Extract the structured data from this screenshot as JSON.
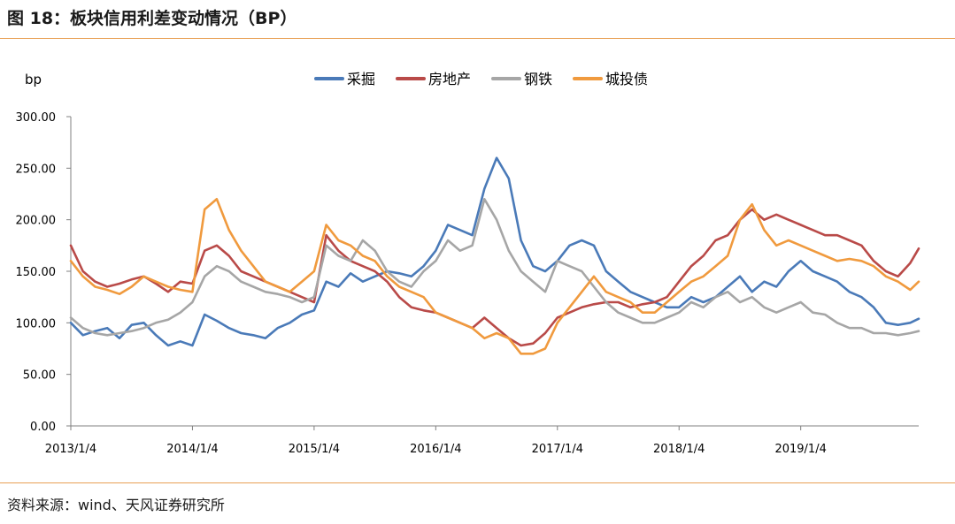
{
  "figure_title": "图 18：板块信用利差变动情况（BP）",
  "source": "资料来源：wind、天风证券研究所",
  "colors": {
    "rule": "#e8a055"
  },
  "chart_data": {
    "type": "line",
    "title": "",
    "unit_label": "bp",
    "xlabel": "",
    "ylabel": "bp",
    "ylim": [
      0,
      300
    ],
    "y_ticks": [
      "0.00",
      "50.00",
      "100.00",
      "150.00",
      "200.00",
      "250.00",
      "300.00"
    ],
    "x_tick_labels": [
      "2013/1/4",
      "2014/1/4",
      "2015/1/4",
      "2016/1/4",
      "2017/1/4",
      "2018/1/4",
      "2019/1/4"
    ],
    "x_tick_years": [
      2013,
      2014,
      2015,
      2016,
      2017,
      2018,
      2019
    ],
    "xlim": [
      2013.0,
      2019.97
    ],
    "grid": false,
    "legend_position": "top-center",
    "x": [
      2013.0,
      2013.1,
      2013.2,
      2013.3,
      2013.4,
      2013.5,
      2013.6,
      2013.7,
      2013.8,
      2013.9,
      2014.0,
      2014.1,
      2014.2,
      2014.3,
      2014.4,
      2014.5,
      2014.6,
      2014.7,
      2014.8,
      2014.9,
      2015.0,
      2015.1,
      2015.2,
      2015.3,
      2015.4,
      2015.5,
      2015.6,
      2015.7,
      2015.8,
      2015.9,
      2016.0,
      2016.1,
      2016.2,
      2016.3,
      2016.4,
      2016.5,
      2016.6,
      2016.7,
      2016.8,
      2016.9,
      2017.0,
      2017.1,
      2017.2,
      2017.3,
      2017.4,
      2017.5,
      2017.6,
      2017.7,
      2017.8,
      2017.9,
      2018.0,
      2018.1,
      2018.2,
      2018.3,
      2018.4,
      2018.5,
      2018.6,
      2018.7,
      2018.8,
      2018.9,
      2019.0,
      2019.1,
      2019.2,
      2019.3,
      2019.4,
      2019.5,
      2019.6,
      2019.7,
      2019.8,
      2019.9,
      2019.97
    ],
    "series": [
      {
        "name": "采掘",
        "color": "#4a7ab8",
        "values": [
          100,
          88,
          92,
          95,
          85,
          98,
          100,
          88,
          78,
          82,
          78,
          108,
          102,
          95,
          90,
          88,
          85,
          95,
          100,
          108,
          112,
          140,
          135,
          148,
          140,
          145,
          150,
          148,
          145,
          155,
          170,
          195,
          190,
          185,
          230,
          260,
          240,
          180,
          155,
          150,
          160,
          175,
          180,
          175,
          150,
          140,
          130,
          125,
          120,
          115,
          115,
          125,
          120,
          125,
          135,
          145,
          130,
          140,
          135,
          150,
          160,
          150,
          145,
          140,
          130,
          125,
          115,
          100,
          98,
          100,
          104
        ]
      },
      {
        "name": "房地产",
        "color": "#b94a48",
        "values": [
          175,
          150,
          140,
          135,
          138,
          142,
          145,
          138,
          130,
          140,
          138,
          170,
          175,
          165,
          150,
          145,
          140,
          135,
          130,
          125,
          120,
          185,
          170,
          160,
          155,
          150,
          140,
          125,
          115,
          112,
          110,
          105,
          100,
          95,
          105,
          95,
          85,
          78,
          80,
          90,
          105,
          110,
          115,
          118,
          120,
          120,
          115,
          118,
          120,
          125,
          140,
          155,
          165,
          180,
          185,
          200,
          210,
          200,
          205,
          200,
          195,
          190,
          185,
          185,
          180,
          175,
          160,
          150,
          145,
          158,
          172
        ]
      },
      {
        "name": "钢铁",
        "color": "#a6a6a6",
        "values": [
          105,
          95,
          90,
          88,
          90,
          92,
          95,
          100,
          103,
          110,
          120,
          145,
          155,
          150,
          140,
          135,
          130,
          128,
          125,
          120,
          125,
          175,
          165,
          160,
          180,
          170,
          150,
          140,
          135,
          150,
          160,
          180,
          170,
          175,
          220,
          200,
          170,
          150,
          140,
          130,
          160,
          155,
          150,
          135,
          120,
          110,
          105,
          100,
          100,
          105,
          110,
          120,
          115,
          125,
          130,
          120,
          125,
          115,
          110,
          115,
          120,
          110,
          108,
          100,
          95,
          95,
          90,
          90,
          88,
          90,
          92
        ]
      },
      {
        "name": "城投债",
        "color": "#f09a3e",
        "values": [
          160,
          145,
          135,
          132,
          128,
          135,
          145,
          140,
          135,
          132,
          130,
          210,
          220,
          190,
          170,
          155,
          140,
          135,
          130,
          140,
          150,
          195,
          180,
          175,
          165,
          160,
          145,
          135,
          130,
          125,
          110,
          105,
          100,
          95,
          85,
          90,
          85,
          70,
          70,
          75,
          100,
          115,
          130,
          145,
          130,
          125,
          120,
          110,
          110,
          120,
          130,
          140,
          145,
          155,
          165,
          200,
          215,
          190,
          175,
          180,
          175,
          170,
          165,
          160,
          162,
          160,
          155,
          145,
          140,
          132,
          140
        ]
      }
    ]
  }
}
